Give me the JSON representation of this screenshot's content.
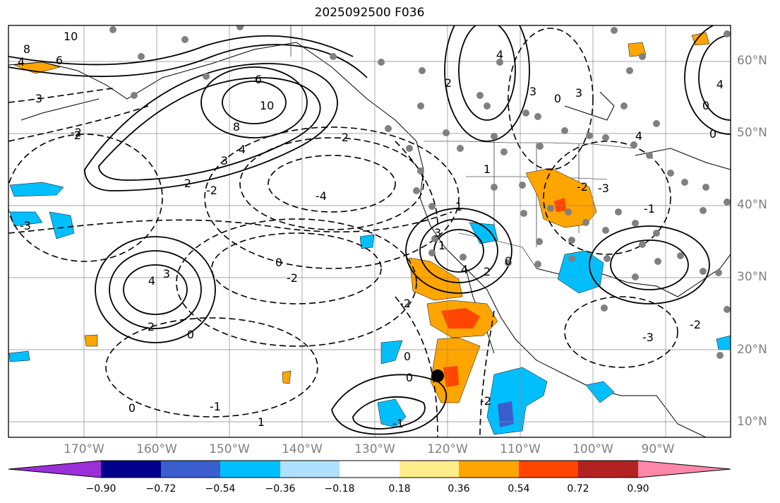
{
  "title": "2025092500 F036",
  "longitude_labels": [
    "170°W",
    "160°W",
    "150°W",
    "140°W",
    "130°W",
    "120°W",
    "110°W",
    "100°W",
    "90°W"
  ],
  "latitude_labels": [
    "60°N",
    "50°N",
    "40°N",
    "30°N",
    "20°N",
    "10°N"
  ],
  "colorbar": {
    "ticks": [
      "−0.90",
      "−0.72",
      "−0.54",
      "−0.36",
      "−0.18",
      "0.18",
      "0.36",
      "0.54",
      "0.72",
      "0.90"
    ],
    "colors": [
      "#9b30d9",
      "#00008b",
      "#3a5fcd",
      "#00bfff",
      "#b0e0ff",
      "#ffffff",
      "#ffec8b",
      "#ffa500",
      "#ff4500",
      "#b22222",
      "#ff88aa"
    ]
  },
  "map": {
    "grid": true,
    "contour_labels": [
      {
        "text": "10"
      },
      {
        "text": "8"
      },
      {
        "text": "6"
      },
      {
        "text": "4"
      },
      {
        "text": "3"
      },
      {
        "text": "2"
      },
      {
        "text": "6"
      },
      {
        "text": "10"
      },
      {
        "text": "8"
      },
      {
        "text": "4"
      },
      {
        "text": "3"
      },
      {
        "text": "2"
      },
      {
        "text": "-4"
      },
      {
        "text": "-3"
      },
      {
        "text": "-2"
      },
      {
        "text": "0"
      },
      {
        "text": "-2"
      },
      {
        "text": "4"
      },
      {
        "text": "3"
      },
      {
        "text": "2"
      },
      {
        "text": "0"
      },
      {
        "text": "-1"
      },
      {
        "text": "0"
      },
      {
        "text": "1"
      },
      {
        "text": "0"
      },
      {
        "text": "-2"
      },
      {
        "text": "4"
      },
      {
        "text": "3"
      },
      {
        "text": "2"
      },
      {
        "text": "1"
      },
      {
        "text": "4"
      },
      {
        "text": "2"
      },
      {
        "text": "3"
      },
      {
        "text": "0"
      },
      {
        "text": "3"
      },
      {
        "text": "4"
      },
      {
        "text": "1"
      },
      {
        "text": "0"
      },
      {
        "text": "-3"
      },
      {
        "text": "-3"
      },
      {
        "text": "-2"
      },
      {
        "text": "-2"
      },
      {
        "text": "-1"
      },
      {
        "text": "0"
      },
      {
        "text": "0"
      },
      {
        "text": "-2"
      },
      {
        "text": "-2"
      },
      {
        "text": "-2"
      },
      {
        "text": "4"
      },
      {
        "text": "0"
      },
      {
        "text": "-1"
      },
      {
        "text": "1"
      }
    ]
  }
}
